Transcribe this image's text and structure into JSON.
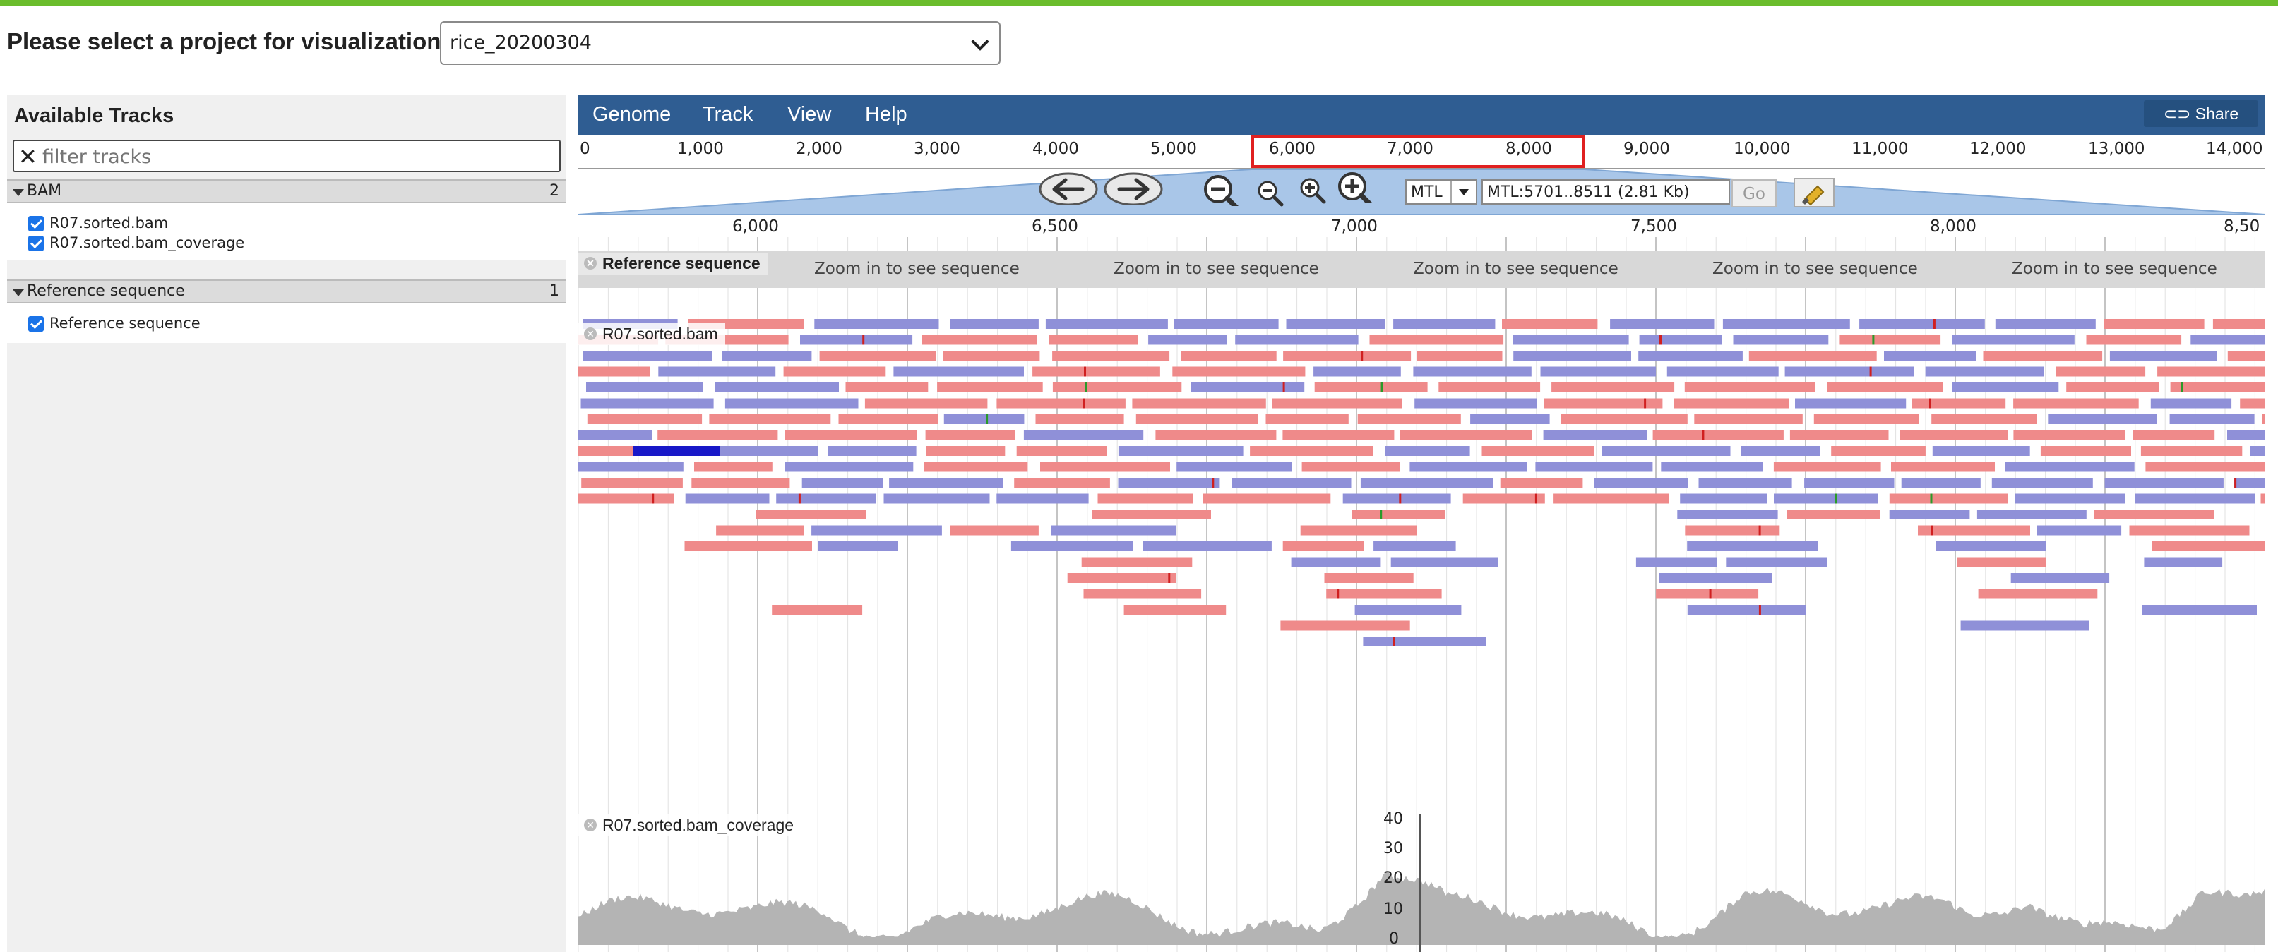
{
  "page": {
    "project_label": "Please select a project for visualization:",
    "project_value": "rice_20200304"
  },
  "left_panel": {
    "title": "Available Tracks",
    "filter_placeholder": "filter tracks",
    "categories": [
      {
        "name": "BAM",
        "count": "2",
        "tracks": [
          "R07.sorted.bam",
          "R07.sorted.bam_coverage"
        ]
      },
      {
        "name": "Reference sequence",
        "count": "1",
        "tracks": [
          "Reference sequence"
        ]
      }
    ]
  },
  "menubar": {
    "items": [
      "Genome",
      "Track",
      "View",
      "Help"
    ],
    "share_label": "Share"
  },
  "overview_ruler": {
    "ticks": [
      "0",
      "1,000",
      "2,000",
      "3,000",
      "4,000",
      "5,000",
      "6,000",
      "7,000",
      "8,000",
      "9,000",
      "10,000",
      "11,000",
      "12,000",
      "13,000",
      "14,000"
    ]
  },
  "navigation": {
    "ref_seq": "MTL",
    "location": "MTL:5701..8511 (2.81 Kb)",
    "go_label": "Go",
    "icons": [
      "pan-left-icon",
      "pan-right-icon",
      "zoom-out-large-icon",
      "zoom-out-small-icon",
      "zoom-in-small-icon",
      "zoom-in-large-icon",
      "highlight-icon"
    ]
  },
  "detail_scale": {
    "ticks": [
      "6,000",
      "6,500",
      "7,000",
      "7,500",
      "8,000",
      "8,50"
    ]
  },
  "tracks": {
    "reference": {
      "label": "Reference sequence",
      "message": "Zoom in to see sequence"
    },
    "bam": {
      "label": "R07.sorted.bam"
    },
    "coverage": {
      "label": "R07.sorted.bam_coverage",
      "yticks": [
        "40",
        "30",
        "20",
        "10",
        "0"
      ]
    }
  },
  "colors": {
    "forward_read": "#ef8a8a",
    "reverse_read": "#8f90d8",
    "menubar": "#2f5d92",
    "topbar": "#6bbd2c",
    "coverage": "#b4b4b4",
    "highlight_box": "#e02020"
  }
}
